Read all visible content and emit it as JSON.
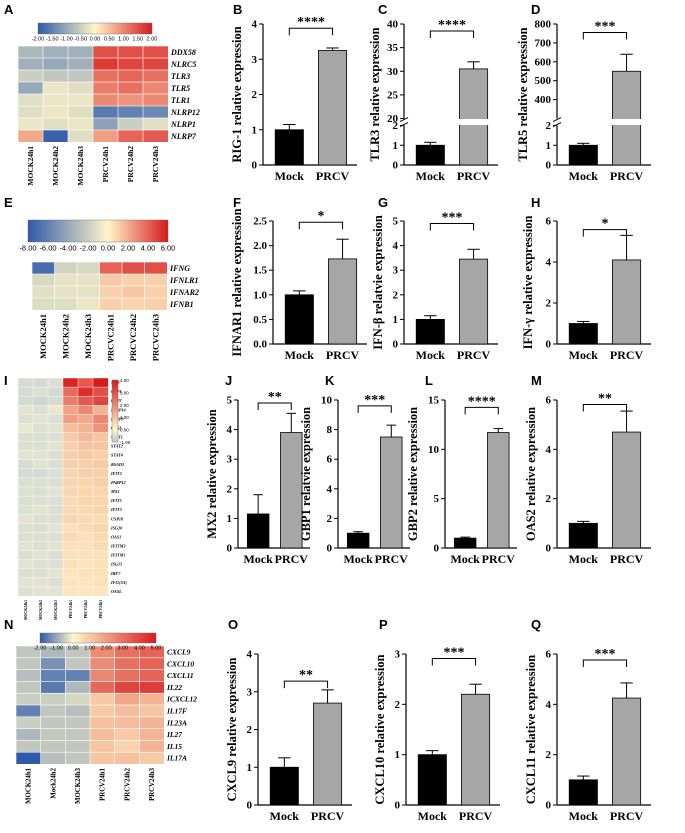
{
  "palette": {
    "blue": "#2f5aa9",
    "yellow": "#fff6c9",
    "red": "#d7191c",
    "mid_blue": "#b7c9dc",
    "bar_mock": "#000000",
    "bar_prcv": "#a6a6a6"
  },
  "chart_data": [
    {
      "panel": "A",
      "type": "heatmap",
      "colorbar_ticks": [
        "-2.00",
        "-1.50",
        "-1.00",
        "-0.50",
        "0.00",
        "0.50",
        "1.00",
        "1.50",
        "2.00"
      ],
      "vmin": -2,
      "vmax": 2,
      "columns": [
        "MOCK24h1",
        "MOCK24h2",
        "MOCK24h3",
        "PRCV24h1",
        "PRCV24h2",
        "PRCV24h3"
      ],
      "rows": [
        "DDX58",
        "NLRC5",
        "TLR3",
        "TLR5",
        "TLR1",
        "NLRP12",
        "NLRP1",
        "NLRP7"
      ],
      "values": [
        [
          -0.8,
          -0.9,
          -0.9,
          1.5,
          1.5,
          1.5
        ],
        [
          -0.9,
          -1.0,
          -0.9,
          1.7,
          1.6,
          1.6
        ],
        [
          -0.5,
          -0.6,
          -0.6,
          1.2,
          1.3,
          1.2
        ],
        [
          -1.0,
          -0.2,
          -0.3,
          1.1,
          1.2,
          1.0
        ],
        [
          -0.3,
          -0.2,
          -0.2,
          1.0,
          0.9,
          1.0
        ],
        [
          -0.3,
          -0.2,
          -0.3,
          -1.6,
          -1.5,
          -1.4
        ],
        [
          -0.2,
          -0.3,
          -0.2,
          -1.1,
          -0.5,
          -0.3
        ],
        [
          0.7,
          -1.9,
          -0.3,
          0.8,
          1.3,
          1.4
        ]
      ]
    },
    {
      "panel": "B",
      "type": "bar",
      "ylabel": "RIG-1 relative expression",
      "categories": [
        "Mock",
        "PRCV"
      ],
      "values": [
        1.0,
        3.25
      ],
      "errors": [
        0.15,
        0.07
      ],
      "ylim": [
        0,
        4
      ],
      "yticks": [
        0,
        1,
        2,
        3,
        4
      ],
      "significance": "****"
    },
    {
      "panel": "C",
      "type": "bar",
      "ylabel": "TLR3 relative expression",
      "categories": [
        "Mock",
        "PRCV"
      ],
      "values": [
        1.0,
        30.5
      ],
      "errors": [
        0.15,
        1.5
      ],
      "broken_axis": {
        "lower": [
          0,
          2
        ],
        "upper": [
          20,
          40
        ]
      },
      "yticks": [
        0,
        1,
        2,
        20,
        25,
        30,
        35,
        40
      ],
      "significance": "****"
    },
    {
      "panel": "D",
      "type": "bar",
      "ylabel": "TLR5 relative expression",
      "categories": [
        "Mock",
        "PRCV"
      ],
      "values": [
        1.0,
        550
      ],
      "errors": [
        0.1,
        90
      ],
      "broken_axis": {
        "lower": [
          0,
          2
        ],
        "upper": [
          300,
          800
        ]
      },
      "yticks": [
        0,
        1,
        2,
        400,
        500,
        600,
        700,
        800
      ],
      "significance": "***"
    },
    {
      "panel": "E",
      "type": "heatmap",
      "colorbar_ticks": [
        "-8.00",
        "-6.00",
        "-4.00",
        "-2.00",
        "0.00",
        "2.00",
        "4.00",
        "6.00"
      ],
      "vmin": -8,
      "vmax": 6,
      "columns": [
        "MOCK24h1",
        "MOCK24h2",
        "MOCK24h3",
        "PRCVC24h1",
        "PRCVC24h2",
        "PRCVC24h3"
      ],
      "rows": [
        "IFNG",
        "IFNLR1",
        "IFNAR2",
        "IFNB1"
      ],
      "values": [
        [
          -7.0,
          -1.8,
          -1.5,
          4.0,
          4.5,
          4.5
        ],
        [
          -1.5,
          -1.0,
          -1.0,
          1.2,
          1.0,
          1.0
        ],
        [
          -1.2,
          -1.0,
          -1.0,
          1.0,
          1.3,
          1.0
        ],
        [
          -1.3,
          -1.3,
          -0.8,
          1.0,
          0.9,
          1.0
        ]
      ]
    },
    {
      "panel": "F",
      "type": "bar",
      "ylabel": "IFNAR1 relative expression",
      "categories": [
        "Mock",
        "PRCV"
      ],
      "values": [
        1.0,
        1.73
      ],
      "errors": [
        0.08,
        0.4
      ],
      "ylim": [
        0,
        2.5
      ],
      "yticks": [
        "0.0",
        "0.5",
        "1.0",
        "1.5",
        "2.0",
        "2.5"
      ],
      "significance": "*"
    },
    {
      "panel": "G",
      "type": "bar",
      "ylabel": "IFN-β relatvie expression",
      "categories": [
        "Mock",
        "PRCV"
      ],
      "values": [
        1.0,
        3.45
      ],
      "errors": [
        0.15,
        0.4
      ],
      "ylim": [
        0,
        5
      ],
      "yticks": [
        0,
        1,
        2,
        3,
        4,
        5
      ],
      "significance": "***"
    },
    {
      "panel": "H",
      "type": "bar",
      "ylabel": "IFN-γ relative expression",
      "categories": [
        "Mock",
        "PRCV"
      ],
      "values": [
        1.0,
        4.1
      ],
      "errors": [
        0.1,
        1.2
      ],
      "ylim": [
        0,
        6
      ],
      "yticks": [
        0,
        2,
        4,
        6
      ],
      "significance": "*"
    },
    {
      "panel": "I",
      "type": "heatmap",
      "colorbar_ticks": [
        "4.00",
        "3.00",
        "2.00",
        "1.00",
        "0.00",
        "-1.00"
      ],
      "vmin": -1,
      "vmax": 4,
      "columns": [
        "MOCK24h1",
        "MOCK24h2",
        "MOCK24h3",
        "PRCV24h1",
        "PRCV24h2",
        "PRCV24h3"
      ],
      "rows": [
        "MX2",
        "GBP1",
        "GBP2",
        "PARP14",
        "PARP9",
        "OAS2",
        "STAT1",
        "STAT2",
        "STAT4",
        "RSAD2",
        "IFIT2",
        "PARP12",
        "MX1",
        "IFIT5",
        "IFIT3",
        "USP18",
        "ISG20",
        "OAS1",
        "IFITM3",
        "IFITM1",
        "ISG15",
        "IRF7",
        "IFI1(3A)",
        "OASL"
      ],
      "values": [
        [
          -0.6,
          -0.6,
          -0.5,
          3.8,
          2.8,
          4.0
        ],
        [
          -0.6,
          -0.5,
          -0.6,
          2.5,
          3.6,
          3.0
        ],
        [
          -0.6,
          -0.7,
          -0.6,
          2.2,
          2.8,
          3.2
        ],
        [
          -0.4,
          -0.5,
          -0.3,
          1.5,
          2.0,
          1.2
        ],
        [
          -0.5,
          -0.4,
          -0.5,
          1.6,
          1.4,
          2.0
        ],
        [
          -0.3,
          -0.5,
          -0.4,
          1.0,
          1.2,
          1.8
        ],
        [
          -0.5,
          -0.5,
          -0.5,
          0.8,
          1.1,
          0.9
        ],
        [
          -0.5,
          -0.5,
          -0.4,
          0.7,
          0.9,
          0.9
        ],
        [
          -0.4,
          -0.4,
          -0.5,
          0.7,
          0.8,
          0.7
        ],
        [
          -0.6,
          -0.4,
          -0.5,
          0.7,
          0.7,
          0.8
        ],
        [
          -0.6,
          -0.6,
          -0.5,
          0.6,
          0.7,
          0.7
        ],
        [
          -0.5,
          -0.5,
          -0.5,
          0.6,
          0.6,
          0.7
        ],
        [
          -0.5,
          -0.5,
          -0.4,
          0.6,
          0.6,
          0.6
        ],
        [
          -0.5,
          -0.5,
          -0.5,
          0.5,
          0.6,
          0.6
        ],
        [
          -0.5,
          -0.4,
          -0.5,
          0.5,
          0.5,
          0.6
        ],
        [
          -0.4,
          -0.5,
          -0.5,
          0.6,
          0.5,
          0.5
        ],
        [
          -0.5,
          -0.5,
          -0.4,
          0.4,
          0.5,
          0.6
        ],
        [
          -0.5,
          -0.5,
          -0.5,
          0.5,
          0.4,
          0.5
        ],
        [
          -0.4,
          -0.5,
          -0.4,
          0.4,
          0.4,
          0.5
        ],
        [
          -0.5,
          -0.4,
          -0.5,
          0.4,
          0.4,
          0.4
        ],
        [
          -0.4,
          -0.5,
          -0.5,
          0.4,
          0.3,
          0.4
        ],
        [
          -0.5,
          -0.5,
          -0.4,
          0.3,
          0.4,
          0.4
        ],
        [
          -0.4,
          -0.4,
          -0.5,
          0.3,
          0.3,
          0.4
        ],
        [
          -0.5,
          -0.4,
          -0.4,
          0.3,
          0.3,
          0.3
        ]
      ]
    },
    {
      "panel": "J",
      "type": "bar",
      "ylabel": "MX2 relative expression",
      "categories": [
        "Mock",
        "PRCV"
      ],
      "values": [
        1.15,
        3.9
      ],
      "errors": [
        0.65,
        0.65
      ],
      "ylim": [
        0,
        5
      ],
      "yticks": [
        0,
        1,
        2,
        3,
        4,
        5
      ],
      "significance": "**"
    },
    {
      "panel": "K",
      "type": "bar",
      "ylabel": "GBP1 relatvie expression",
      "categories": [
        "Mock",
        "PRCV"
      ],
      "values": [
        1.0,
        7.5
      ],
      "errors": [
        0.1,
        0.8
      ],
      "ylim": [
        0,
        10
      ],
      "yticks": [
        0,
        2,
        4,
        6,
        8,
        10
      ],
      "significance": "***"
    },
    {
      "panel": "L",
      "type": "bar",
      "ylabel": "GBP2 relative expression",
      "categories": [
        "Mock",
        "PRCV"
      ],
      "values": [
        1.0,
        11.7
      ],
      "errors": [
        0.1,
        0.4
      ],
      "ylim": [
        0,
        15
      ],
      "yticks": [
        0,
        5,
        10,
        15
      ],
      "significance": "****"
    },
    {
      "panel": "M",
      "type": "bar",
      "ylabel": "OAS2 relative expression",
      "categories": [
        "Mock",
        "PRCV"
      ],
      "values": [
        1.0,
        4.7
      ],
      "errors": [
        0.08,
        0.85
      ],
      "ylim": [
        0,
        6
      ],
      "yticks": [
        0,
        2,
        4,
        6
      ],
      "significance": "**"
    },
    {
      "panel": "N",
      "type": "heatmap",
      "colorbar_ticks": [
        "-2.00",
        "-1.00",
        "0.00",
        "1.00",
        "2.00",
        "3.00",
        "4.00",
        "5.00"
      ],
      "vmin": -2,
      "vmax": 5,
      "columns": [
        "MOCK24h1",
        "Mock24h2",
        "MOCK24h3",
        "PRCV24h1",
        "PRCV24h2",
        "PRCV24h3"
      ],
      "rows": [
        "CXCL9",
        "CXCL10",
        "CXCL11",
        "IL22",
        "ICXCL12",
        "IL17F",
        "IL23A",
        "IL27",
        "IL15",
        "IL17A"
      ],
      "values": [
        [
          -0.6,
          -0.8,
          -0.6,
          2.4,
          3.0,
          3.3
        ],
        [
          -0.6,
          -1.3,
          -0.6,
          2.4,
          3.0,
          3.3
        ],
        [
          -0.7,
          -1.5,
          -1.5,
          2.5,
          3.0,
          3.3
        ],
        [
          -0.6,
          -1.6,
          -0.8,
          3.2,
          4.0,
          4.2
        ],
        [
          -0.5,
          -0.5,
          -0.4,
          1.0,
          1.8,
          1.5
        ],
        [
          -1.5,
          -0.6,
          -0.7,
          1.0,
          1.3,
          1.1
        ],
        [
          -0.5,
          -0.6,
          -0.6,
          1.2,
          1.3,
          1.5
        ],
        [
          -0.8,
          -0.6,
          -0.6,
          1.3,
          1.0,
          1.5
        ],
        [
          -0.6,
          -0.6,
          -0.6,
          1.1,
          0.8,
          1.5
        ],
        [
          -2.0,
          -0.7,
          -0.6,
          1.1,
          1.2,
          1.0
        ]
      ]
    },
    {
      "panel": "O",
      "type": "bar",
      "ylabel": "CXCL9 relative expression",
      "categories": [
        "Mock",
        "PRCV"
      ],
      "values": [
        1.0,
        2.7
      ],
      "errors": [
        0.25,
        0.35
      ],
      "ylim": [
        0,
        4
      ],
      "yticks": [
        0,
        1,
        2,
        3,
        4
      ],
      "significance": "**"
    },
    {
      "panel": "P",
      "type": "bar",
      "ylabel": "CXCL10 relative expression",
      "categories": [
        "Mock",
        "PRCV"
      ],
      "values": [
        1.0,
        2.2
      ],
      "errors": [
        0.08,
        0.2
      ],
      "ylim": [
        0,
        3
      ],
      "yticks": [
        0,
        1,
        2,
        3
      ],
      "significance": "***"
    },
    {
      "panel": "Q",
      "type": "bar",
      "ylabel": "CXCL11 relative expression",
      "categories": [
        "Mock",
        "PRCV"
      ],
      "values": [
        1.0,
        4.25
      ],
      "errors": [
        0.15,
        0.6
      ],
      "ylim": [
        0,
        6
      ],
      "yticks": [
        0,
        2,
        4,
        6
      ],
      "significance": "***"
    }
  ]
}
